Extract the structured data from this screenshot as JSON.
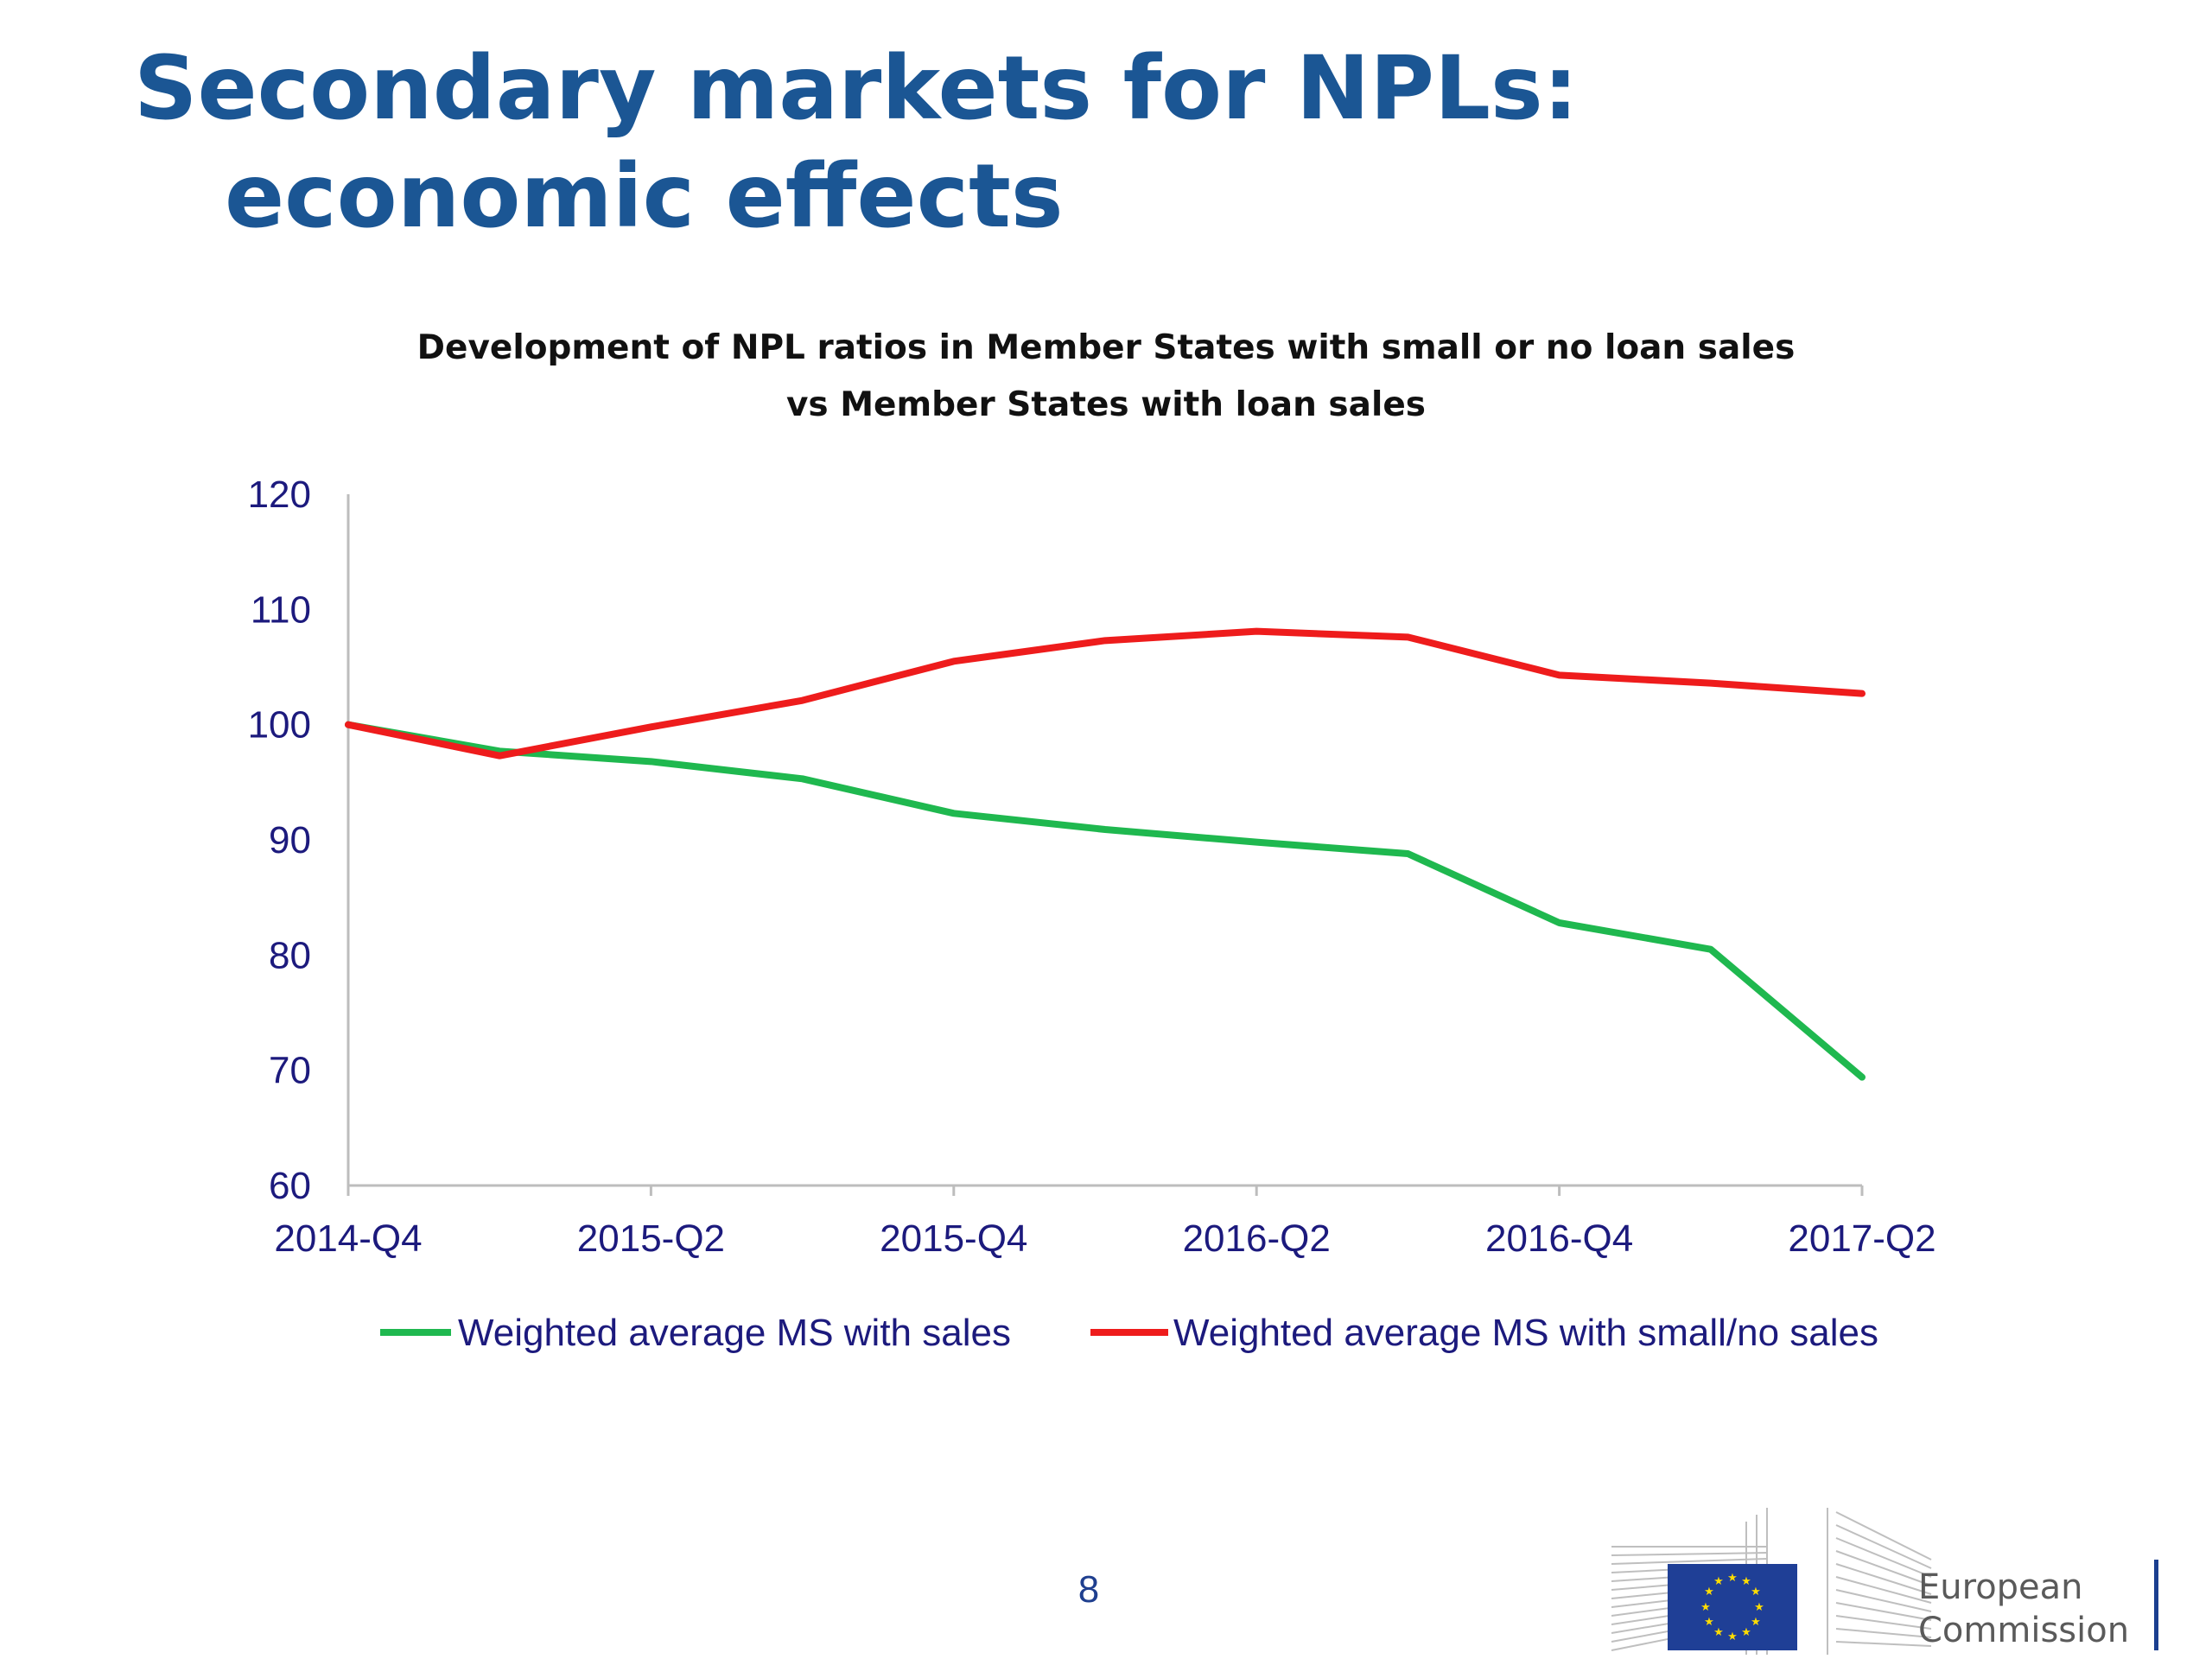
{
  "slide": {
    "title_line1": "Secondary markets for NPLs:",
    "title_line2": "economic effects",
    "page_number": "8"
  },
  "logo": {
    "text_line1": "European",
    "text_line2": "Commission"
  },
  "colors": {
    "title": "#1b5694",
    "axis_text": "#1c1a7d",
    "series_green": "#1fb84f",
    "series_red": "#ee1c1c"
  },
  "chart_data": {
    "type": "line",
    "title_line1": "Development of NPL ratios in Member States with small or no loan sales",
    "title_line2": "vs Member States with loan sales",
    "x": [
      "2014-Q4",
      "2015-Q1",
      "2015-Q2",
      "2015-Q3",
      "2015-Q4",
      "2016-Q1",
      "2016-Q2",
      "2016-Q3",
      "2016-Q4",
      "2017-Q1",
      "2017-Q2"
    ],
    "x_tick_labels": [
      "2014-Q4",
      "2015-Q2",
      "2015-Q4",
      "2016-Q2",
      "2016-Q4",
      "2017-Q2"
    ],
    "y_ticks": [
      60,
      70,
      80,
      90,
      100,
      110,
      120
    ],
    "ylim": [
      60,
      120
    ],
    "grid": false,
    "legend_position": "bottom",
    "series": [
      {
        "name": "Weighted average MS with  sales",
        "color": "#1fb84f",
        "values": [
          100,
          97.7,
          96.8,
          95.3,
          92.3,
          90.9,
          89.8,
          88.8,
          82.8,
          80.5,
          69.4
        ]
      },
      {
        "name": "Weighted average MS with small/no sales",
        "color": "#ee1c1c",
        "values": [
          100,
          97.3,
          99.8,
          102.1,
          105.5,
          107.3,
          108.1,
          107.6,
          104.3,
          103.6,
          102.7
        ]
      }
    ]
  }
}
